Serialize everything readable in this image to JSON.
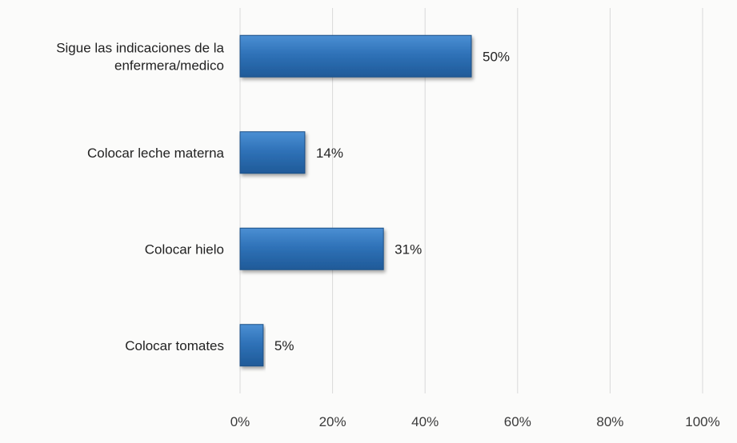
{
  "chart_data": {
    "type": "bar",
    "orientation": "horizontal",
    "categories": [
      [
        "Sigue las indicaciones de la",
        "enfermera/medico"
      ],
      [
        "Colocar leche materna"
      ],
      [
        "Colocar hielo"
      ],
      [
        "Colocar tomates"
      ]
    ],
    "values": [
      50,
      14,
      31,
      5
    ],
    "data_labels": [
      "50%",
      "14%",
      "31%",
      "5%"
    ],
    "xlim": [
      0,
      100
    ],
    "x_ticks": [
      0,
      20,
      40,
      60,
      80,
      100
    ],
    "x_tick_labels": [
      "0%",
      "20%",
      "40%",
      "60%",
      "80%",
      "100%"
    ],
    "grid": true,
    "legend": "none",
    "bar_color": "#2f72b8",
    "bar_edge_color": "#1a4f86"
  }
}
